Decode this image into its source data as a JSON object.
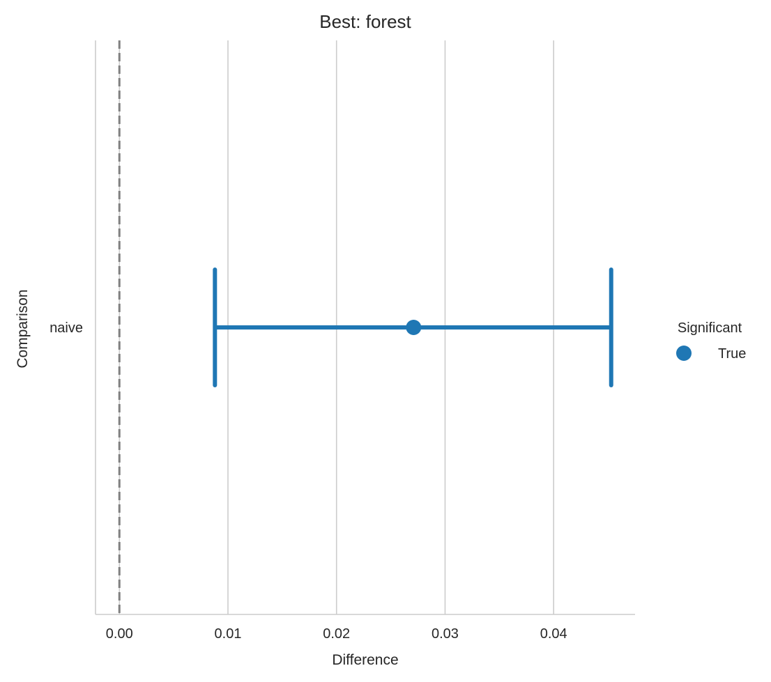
{
  "chart_data": {
    "type": "scatter",
    "title": "Best: forest",
    "xlabel": "Difference",
    "ylabel": "Comparison",
    "xlim": [
      -0.0022,
      0.0475
    ],
    "xticks": [
      0.0,
      0.01,
      0.02,
      0.03,
      0.04
    ],
    "xtick_labels": [
      "0.00",
      "0.01",
      "0.02",
      "0.03",
      "0.04"
    ],
    "categories": [
      "naive"
    ],
    "grid": "vertical",
    "reference_line": {
      "x": 0,
      "style": "dashed",
      "color": "#808080"
    },
    "series": [
      {
        "name": "True",
        "color": "#1f77b4",
        "points": [
          {
            "category": "naive",
            "x": 0.0271,
            "ci_low": 0.0088,
            "ci_high": 0.0453
          }
        ]
      }
    ],
    "legend": {
      "title": "Significant",
      "placement": "right",
      "entries": [
        {
          "label": "True",
          "color": "#1f77b4",
          "marker": "circle"
        }
      ]
    }
  }
}
